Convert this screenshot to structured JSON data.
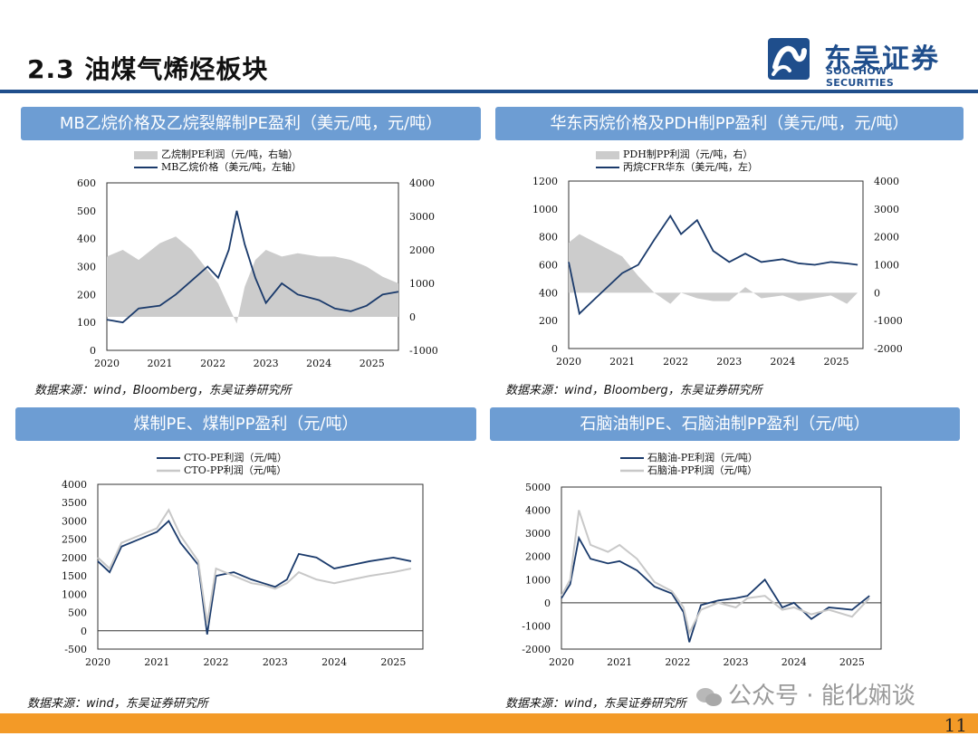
{
  "page": {
    "title": "2.3 油煤气烯烃板块",
    "page_number": "11",
    "watermark": "公众号 · 能化娴谈",
    "logo": {
      "cn": "东吴证券",
      "en": "SOOCHOW SECURITIES"
    },
    "colors": {
      "accent": "#1f4e8c",
      "header_bg": "#6d9dd3",
      "bottom_bar": "#f39a27",
      "series_dark": "#1a3a6b",
      "series_light": "#cccccc"
    }
  },
  "panels": [
    {
      "header": "MB乙烷价格及乙烷裂解制PE盈利（美元/吨，元/吨）",
      "source": "数据来源：wind，Bloomberg，东吴证券研究所",
      "legend": [
        "乙烷制PE利润（元/吨，右轴）",
        "MB乙烷价格（美元/吨，左轴）"
      ],
      "left_ticks": [
        "600",
        "500",
        "400",
        "300",
        "200",
        "100",
        "0"
      ],
      "right_ticks": [
        "4000",
        "3000",
        "2000",
        "1000",
        "0",
        "-1000"
      ],
      "x_ticks": [
        "2020",
        "2021",
        "2022",
        "2023",
        "2024",
        "2025"
      ]
    },
    {
      "header": "华东丙烷价格及PDH制PP盈利（美元/吨，元/吨）",
      "source": "数据来源：wind，Bloomberg，东吴证券研究所",
      "legend": [
        "PDH制PP利润（元/吨，右）",
        "丙烷CFR华东（美元/吨，左）"
      ],
      "left_ticks": [
        "1200",
        "1000",
        "800",
        "600",
        "400",
        "200",
        "0"
      ],
      "right_ticks": [
        "4000",
        "3000",
        "2000",
        "1000",
        "0",
        "-1000",
        "-2000"
      ],
      "x_ticks": [
        "2020",
        "2021",
        "2022",
        "2023",
        "2024",
        "2025"
      ]
    },
    {
      "header": "煤制PE、煤制PP盈利（元/吨）",
      "source": "数据来源：wind，东吴证券研究所",
      "legend": [
        "CTO-PE利润（元/吨）",
        "CTO-PP利润（元/吨）"
      ],
      "left_ticks": [
        "4000",
        "3500",
        "3000",
        "2500",
        "2000",
        "1500",
        "1000",
        "500",
        "0",
        "-500"
      ],
      "x_ticks": [
        "2020",
        "2021",
        "2022",
        "2023",
        "2024",
        "2025"
      ]
    },
    {
      "header": "石脑油制PE、石脑油制PP盈利（元/吨）",
      "source": "数据来源：wind，东吴证券研究所",
      "legend": [
        "石脑油-PE利润（元/吨）",
        "石脑油-PP利润（元/吨）"
      ],
      "left_ticks": [
        "5000",
        "4000",
        "3000",
        "2000",
        "1000",
        "0",
        "-1000",
        "-2000"
      ],
      "x_ticks": [
        "2020",
        "2021",
        "2022",
        "2023",
        "2024",
        "2025"
      ]
    }
  ],
  "chart_data": [
    {
      "type": "line",
      "title": "MB乙烷价格及乙烷裂解制PE盈利（美元/吨，元/吨）",
      "x": [
        2020.0,
        2020.3,
        2020.6,
        2021.0,
        2021.3,
        2021.6,
        2021.9,
        2022.1,
        2022.3,
        2022.45,
        2022.6,
        2022.8,
        2023.0,
        2023.3,
        2023.6,
        2024.0,
        2024.3,
        2024.6,
        2024.9,
        2025.2,
        2025.5
      ],
      "series": [
        {
          "name": "MB乙烷价格（美元/吨，左轴）",
          "axis": "left",
          "values": [
            110,
            100,
            150,
            160,
            200,
            250,
            300,
            260,
            360,
            500,
            380,
            260,
            170,
            240,
            200,
            180,
            150,
            140,
            160,
            200,
            210
          ]
        },
        {
          "name": "乙烷制PE利润（元/吨，右轴）",
          "axis": "right",
          "type": "area",
          "values": [
            1800,
            2000,
            1700,
            2200,
            2400,
            2000,
            1400,
            1000,
            300,
            -200,
            900,
            1700,
            2000,
            1800,
            1900,
            1800,
            1800,
            1700,
            1500,
            1200,
            1000
          ]
        }
      ],
      "ylim_left": [
        0,
        600
      ],
      "ylim_right": [
        -1000,
        4000
      ],
      "xlim": [
        2020,
        2025.5
      ]
    },
    {
      "type": "line",
      "title": "华东丙烷价格及PDH制PP盈利（美元/吨，元/吨）",
      "x": [
        2020.0,
        2020.2,
        2020.5,
        2021.0,
        2021.3,
        2021.6,
        2021.9,
        2022.1,
        2022.4,
        2022.7,
        2023.0,
        2023.3,
        2023.6,
        2024.0,
        2024.3,
        2024.6,
        2024.9,
        2025.2,
        2025.4
      ],
      "series": [
        {
          "name": "丙烷CFR华东（美元/吨，左）",
          "axis": "left",
          "values": [
            620,
            250,
            360,
            540,
            600,
            780,
            950,
            820,
            920,
            700,
            620,
            680,
            620,
            640,
            610,
            600,
            620,
            610,
            600
          ]
        },
        {
          "name": "PDH制PP利润（元/吨，右）",
          "axis": "right",
          "type": "area",
          "values": [
            1800,
            2100,
            1800,
            1300,
            600,
            0,
            -400,
            0,
            -200,
            -300,
            -300,
            200,
            -200,
            -100,
            -300,
            -200,
            -100,
            -400,
            0
          ]
        }
      ],
      "ylim_left": [
        0,
        1200
      ],
      "ylim_right": [
        -2000,
        4000
      ],
      "xlim": [
        2020,
        2025.4
      ]
    },
    {
      "type": "line",
      "title": "煤制PE、煤制PP盈利（元/吨）",
      "x": [
        2020.0,
        2020.2,
        2020.4,
        2020.7,
        2021.0,
        2021.2,
        2021.4,
        2021.7,
        2021.85,
        2022.0,
        2022.3,
        2022.6,
        2022.8,
        2023.0,
        2023.2,
        2023.4,
        2023.7,
        2024.0,
        2024.3,
        2024.6,
        2025.0,
        2025.3
      ],
      "series": [
        {
          "name": "CTO-PE利润（元/吨）",
          "values": [
            1900,
            1600,
            2300,
            2500,
            2700,
            3000,
            2400,
            1800,
            -100,
            1500,
            1600,
            1400,
            1300,
            1200,
            1400,
            2100,
            2000,
            1700,
            1800,
            1900,
            2000,
            1900
          ]
        },
        {
          "name": "CTO-PP利润（元/吨）",
          "values": [
            2000,
            1700,
            2400,
            2600,
            2800,
            3300,
            2600,
            1900,
            200,
            1700,
            1500,
            1300,
            1250,
            1150,
            1300,
            1600,
            1400,
            1300,
            1400,
            1500,
            1600,
            1700
          ]
        }
      ],
      "ylim": [
        -500,
        4000
      ],
      "xlim": [
        2020,
        2025.35
      ]
    },
    {
      "type": "line",
      "title": "石脑油制PE、石脑油制PP盈利（元/吨）",
      "x": [
        2020.0,
        2020.15,
        2020.3,
        2020.5,
        2020.8,
        2021.0,
        2021.3,
        2021.6,
        2021.9,
        2022.1,
        2022.2,
        2022.4,
        2022.7,
        2023.0,
        2023.2,
        2023.5,
        2023.8,
        2024.0,
        2024.3,
        2024.6,
        2025.0,
        2025.3
      ],
      "series": [
        {
          "name": "石脑油-PE利润（元/吨）",
          "values": [
            200,
            800,
            2800,
            1900,
            1700,
            1800,
            1400,
            700,
            400,
            -400,
            -1700,
            -100,
            100,
            200,
            300,
            1000,
            -200,
            0,
            -700,
            -200,
            -300,
            300
          ]
        },
        {
          "name": "石脑油-PP利润（元/吨）",
          "values": [
            300,
            1000,
            4000,
            2500,
            2200,
            2500,
            1900,
            900,
            500,
            -200,
            -1300,
            -300,
            0,
            -200,
            200,
            300,
            -300,
            -200,
            -500,
            -300,
            -600,
            200
          ]
        }
      ],
      "ylim": [
        -2000,
        5000
      ],
      "xlim": [
        2020,
        2025.35
      ]
    }
  ]
}
